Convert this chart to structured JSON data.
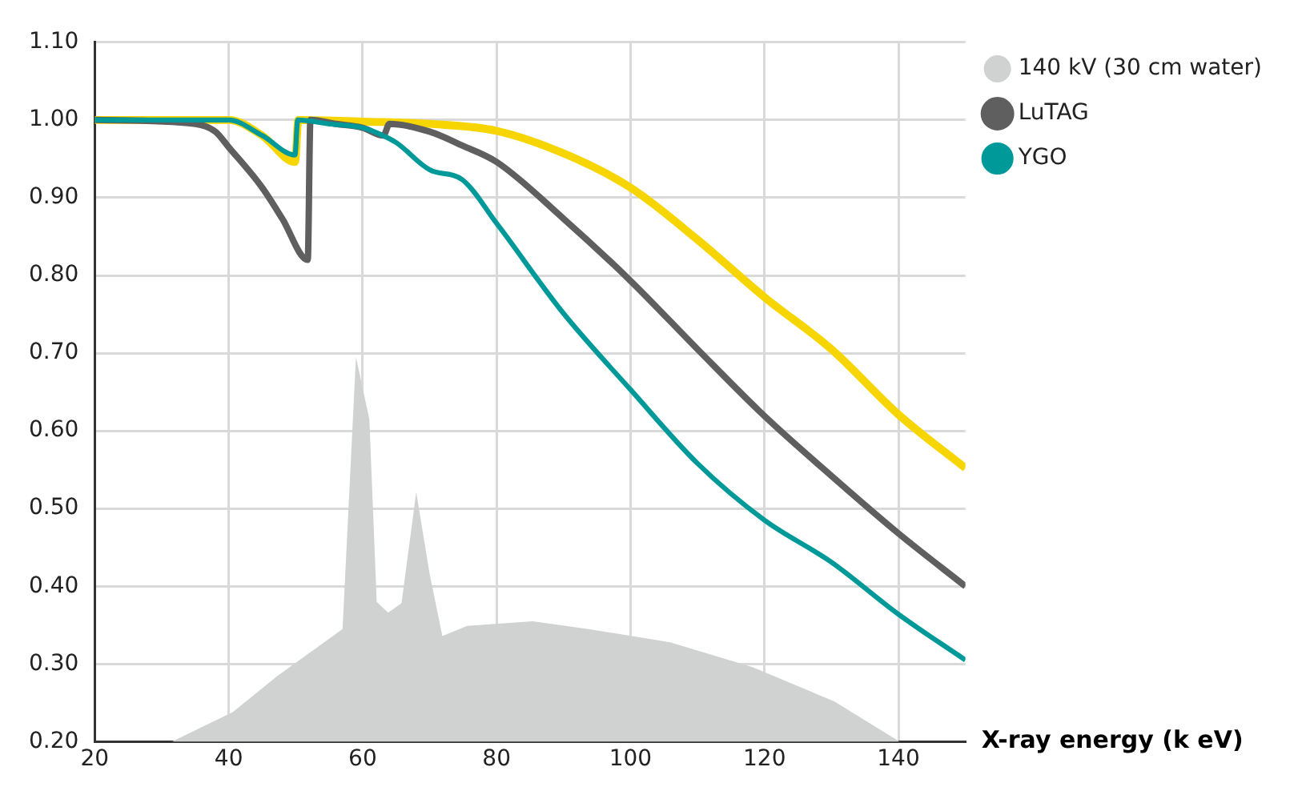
{
  "chart_data": {
    "type": "line",
    "xlabel": "X-ray energy (k eV)",
    "xlim": [
      20,
      150
    ],
    "xticks": [
      20,
      40,
      60,
      80,
      100,
      120,
      140
    ],
    "ylim": [
      0.2,
      1.1
    ],
    "yticks": [
      {
        "value": 0.2,
        "label": "0.20"
      },
      {
        "value": 0.3,
        "label": "0.30"
      },
      {
        "value": 0.4,
        "label": "0.40"
      },
      {
        "value": 0.5,
        "label": "0.50"
      },
      {
        "value": 0.6,
        "label": "0.60"
      },
      {
        "value": 0.7,
        "label": "0.70"
      },
      {
        "value": 0.8,
        "label": "0.80"
      },
      {
        "value": 0.9,
        "label": "0.90"
      },
      {
        "value": 1.0,
        "label": "1.00"
      },
      {
        "value": 1.1,
        "label": "1.10"
      }
    ],
    "grid": true,
    "legend": "top right",
    "marker": "none",
    "line_style": "solid",
    "series": [
      {
        "name": "140 kV (30 cm water)",
        "type": "area",
        "color": "#d0d1d1",
        "x": [
          31.5,
          40.6,
          47.2,
          57.0,
          59.0,
          61.0,
          62.1,
          63.8,
          65.8,
          68.0,
          70.0,
          71.9,
          75.6,
          85.4,
          93.7,
          105.9,
          118.2,
          130.4,
          140.2
        ],
        "values": [
          0.2,
          0.238,
          0.284,
          0.345,
          0.695,
          0.615,
          0.38,
          0.366,
          0.378,
          0.521,
          0.416,
          0.336,
          0.349,
          0.355,
          0.345,
          0.328,
          0.296,
          0.252,
          0.2
        ]
      },
      {
        "color": "#f7d500",
        "x": [
          20,
          40,
          45,
          49.9,
          50.4,
          60,
          70,
          80,
          90,
          100,
          110,
          120,
          130,
          140,
          150
        ],
        "values": [
          1.0,
          1.0,
          0.98,
          0.946,
          1.0,
          0.998,
          0.995,
          0.986,
          0.957,
          0.913,
          0.846,
          0.772,
          0.705,
          0.621,
          0.552
        ]
      },
      {
        "name": "LuTAG",
        "color": "#5f5f5f",
        "x": [
          20,
          35,
          38,
          40,
          45,
          48,
          51.8,
          52.2,
          56,
          60,
          63.1,
          64,
          70,
          74.9,
          80,
          90,
          100,
          110,
          120,
          130,
          140,
          150
        ],
        "values": [
          1.0,
          0.995,
          0.985,
          0.965,
          0.913,
          0.873,
          0.82,
          1.0,
          0.995,
          0.99,
          0.98,
          0.995,
          0.985,
          0.967,
          0.946,
          0.873,
          0.793,
          0.705,
          0.619,
          0.542,
          0.468,
          0.4
        ]
      },
      {
        "name": "YGO",
        "color": "#009999",
        "x": [
          20,
          40,
          45,
          49.9,
          50.3,
          55,
          60,
          63,
          65,
          70,
          74.9,
          80,
          90,
          100,
          110,
          120,
          130,
          140,
          150
        ],
        "values": [
          1.0,
          1.0,
          0.98,
          0.955,
          1.0,
          0.995,
          0.99,
          0.98,
          0.971,
          0.936,
          0.923,
          0.867,
          0.751,
          0.653,
          0.558,
          0.485,
          0.431,
          0.364,
          0.305
        ]
      }
    ]
  }
}
